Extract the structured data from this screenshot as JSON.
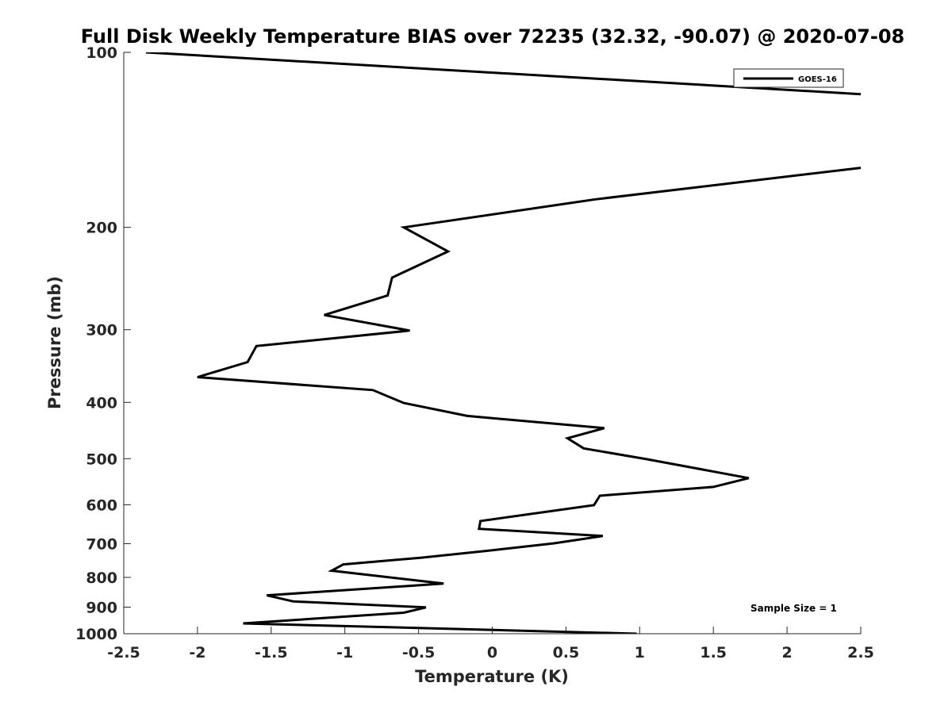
{
  "chart_data": {
    "type": "line",
    "title": "Full Disk Weekly Temperature BIAS over 72235 (32.32, -90.07) @ 2020-07-08",
    "xlabel": "Temperature (K)",
    "ylabel": "Pressure (mb)",
    "xlim": [
      -2.5,
      2.5
    ],
    "ylim": [
      100,
      1000
    ],
    "y_scale": "log",
    "y_reversed": true,
    "grid": false,
    "x_ticks": [
      -2.5,
      -2,
      -1.5,
      -1,
      -0.5,
      0,
      0.5,
      1,
      1.5,
      2,
      2.5
    ],
    "x_tick_labels": [
      "-2.5",
      "-2",
      "-1.5",
      "-1",
      "-0.5",
      "0",
      "0.5",
      "1",
      "1.5",
      "2",
      "2.5"
    ],
    "y_ticks": [
      100,
      200,
      300,
      400,
      500,
      600,
      700,
      800,
      900,
      1000
    ],
    "y_tick_labels": [
      "100",
      "200",
      "300",
      "400",
      "500",
      "600",
      "700",
      "800",
      "900",
      "1000"
    ],
    "legend": {
      "position": "top-right",
      "entries": [
        "GOES-16"
      ]
    },
    "annotation": "Sample Size = 1",
    "series": [
      {
        "name": "GOES-16",
        "color": "#000000",
        "segments": [
          [
            {
              "x": -2.35,
              "p": 100
            },
            {
              "x": 2.5,
              "p": 118
            }
          ],
          [
            {
              "x": 2.5,
              "p": 158
            },
            {
              "x": 0.7,
              "p": 179
            },
            {
              "x": -0.6,
              "p": 200
            },
            {
              "x": -0.3,
              "p": 220
            },
            {
              "x": -0.68,
              "p": 244
            },
            {
              "x": -0.71,
              "p": 262
            },
            {
              "x": -1.14,
              "p": 283
            },
            {
              "x": -0.56,
              "p": 301
            },
            {
              "x": -1.6,
              "p": 320
            },
            {
              "x": -1.66,
              "p": 341
            },
            {
              "x": -2.0,
              "p": 362
            },
            {
              "x": -0.81,
              "p": 381
            },
            {
              "x": -0.6,
              "p": 401
            },
            {
              "x": -0.17,
              "p": 422
            },
            {
              "x": 0.76,
              "p": 443
            },
            {
              "x": 0.51,
              "p": 461
            },
            {
              "x": 0.62,
              "p": 480
            },
            {
              "x": 1.05,
              "p": 501
            },
            {
              "x": 1.74,
              "p": 540
            },
            {
              "x": 1.5,
              "p": 559
            },
            {
              "x": 0.73,
              "p": 579
            },
            {
              "x": 0.69,
              "p": 601
            },
            {
              "x": -0.08,
              "p": 640
            },
            {
              "x": -0.09,
              "p": 660
            },
            {
              "x": 0.75,
              "p": 679
            },
            {
              "x": 0.42,
              "p": 699
            },
            {
              "x": -0.03,
              "p": 720
            },
            {
              "x": -0.48,
              "p": 740
            },
            {
              "x": -1.01,
              "p": 760
            },
            {
              "x": -1.09,
              "p": 779
            },
            {
              "x": -0.33,
              "p": 820
            },
            {
              "x": -1.53,
              "p": 859
            },
            {
              "x": -1.35,
              "p": 880
            },
            {
              "x": -0.45,
              "p": 901
            },
            {
              "x": -0.6,
              "p": 920
            },
            {
              "x": -1.69,
              "p": 960
            },
            {
              "x": 0.98,
              "p": 1000
            }
          ]
        ]
      }
    ]
  }
}
